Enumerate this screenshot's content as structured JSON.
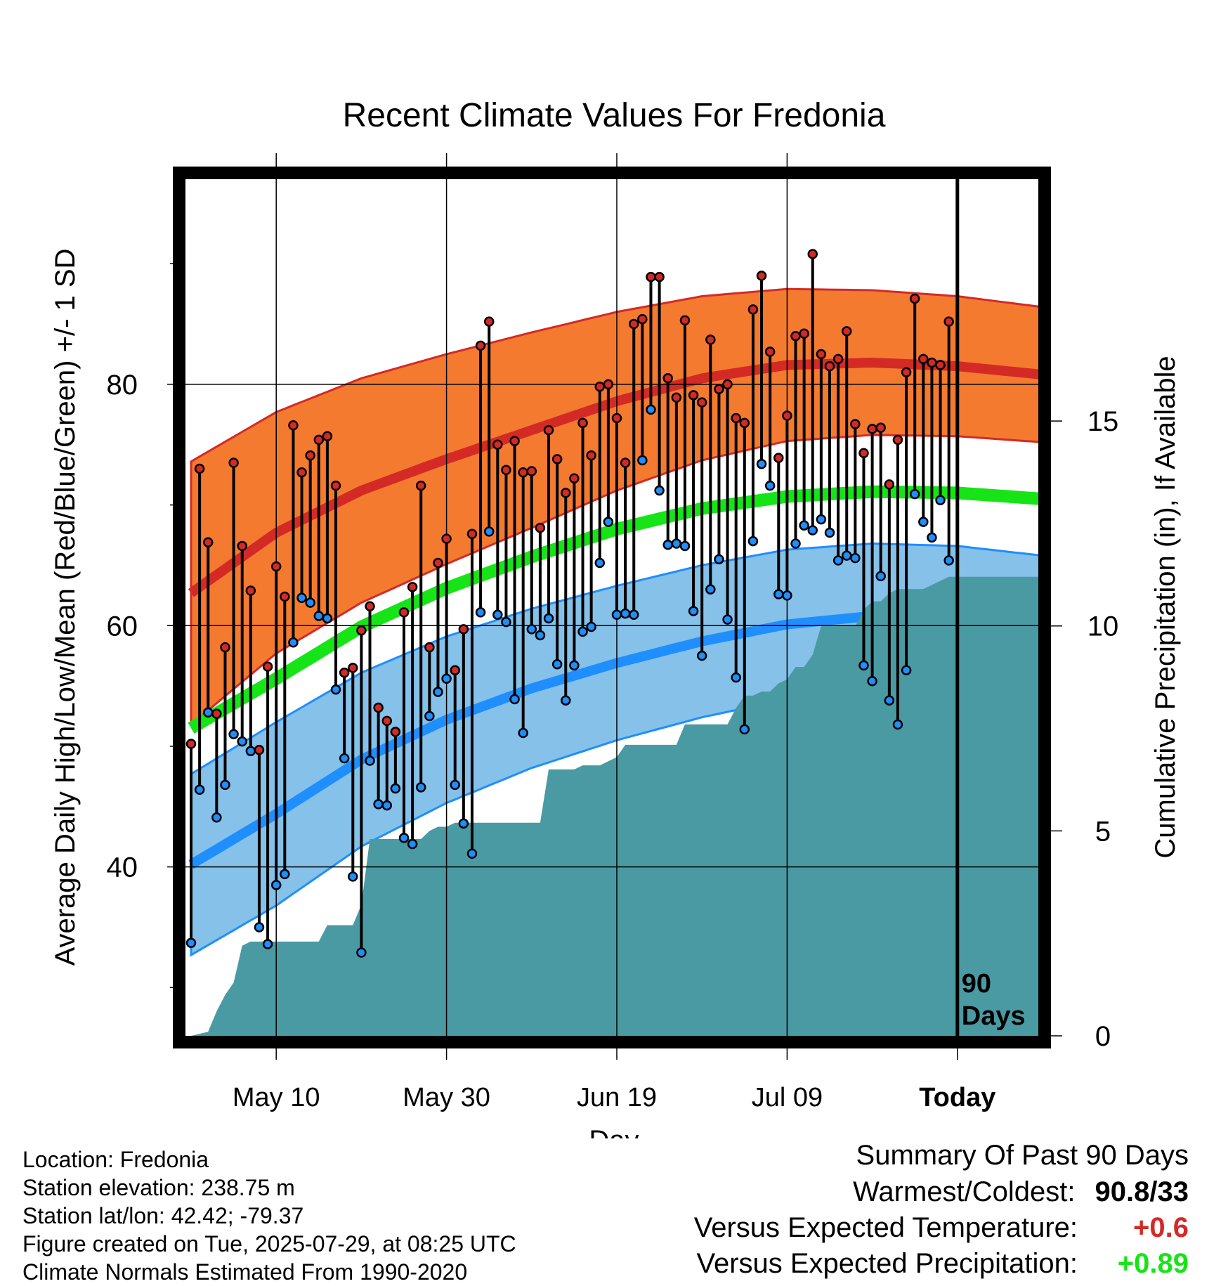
{
  "title": "Recent Climate Values For Fredonia",
  "ylabel_left": "Average Daily High/Low/Mean (Red/Blue/Green) +/- 1 SD",
  "ylabel_right": "Cumulative Precipitation (in), If Available",
  "xlabel": "Day",
  "today_marker": {
    "label_line1": "90",
    "label_line2": "Days"
  },
  "colors": {
    "high_band": "#f47a30",
    "high_line": "#d42a26",
    "low_band": "#85c1e8",
    "low_line": "#1f8eff",
    "mean_line": "#16e416",
    "precip_fill": "#4a9aa3",
    "high_dot": "#d42a26",
    "low_dot": "#1f8eff"
  },
  "chart_data": {
    "type": "line",
    "title": "Recent Climate Values For Fredonia",
    "xlabel": "Day",
    "ylabel": "Average Daily High/Low/Mean (Red/Blue/Green) +/- 1 SD",
    "y2label": "Cumulative Precipitation (in), If Available",
    "x_ticks": [
      {
        "label": "May 10",
        "day": 10
      },
      {
        "label": "May 30",
        "day": 30
      },
      {
        "label": "Jun 19",
        "day": 50
      },
      {
        "label": "Jul 09",
        "day": 70
      },
      {
        "label": "Today",
        "day": 90
      }
    ],
    "x_range": [
      0,
      100
    ],
    "ylim": [
      26,
      97
    ],
    "y_ticks": [
      40,
      60,
      80
    ],
    "y_minor_ticks": [
      30,
      50,
      70,
      90
    ],
    "y2lim": [
      0,
      20.9
    ],
    "y2_ticks": [
      0,
      5,
      10,
      15
    ],
    "grid": true,
    "normals": {
      "day": [
        0,
        10,
        20,
        30,
        40,
        50,
        60,
        70,
        80,
        90,
        100
      ],
      "high_mean": [
        62.7,
        67.7,
        71.2,
        73.8,
        76.2,
        78.6,
        80.5,
        81.6,
        81.8,
        81.5,
        80.8
      ],
      "high_sd": [
        10.9,
        10.0,
        9.3,
        8.7,
        8.1,
        7.4,
        6.8,
        6.3,
        6.0,
        5.8,
        5.6
      ],
      "low_mean": [
        40.2,
        44.4,
        48.9,
        52.2,
        54.8,
        56.9,
        58.7,
        60.1,
        60.8,
        60.7,
        60.1
      ],
      "low_sd": [
        7.5,
        7.6,
        7.2,
        6.9,
        6.6,
        6.4,
        6.3,
        6.2,
        6.0,
        5.9,
        5.7
      ],
      "mean": [
        51.5,
        55.6,
        59.9,
        63.1,
        65.7,
        68.0,
        69.7,
        70.7,
        71.1,
        71.0,
        70.5
      ]
    },
    "series": [
      {
        "name": "High",
        "values": [
          50.2,
          73.0,
          66.9,
          52.7,
          58.2,
          73.5,
          66.6,
          62.9,
          49.7,
          56.6,
          64.9,
          62.4,
          76.6,
          72.7,
          74.1,
          75.4,
          75.7,
          71.6,
          56.1,
          56.5,
          59.6,
          61.6,
          53.2,
          52.1,
          51.2,
          61.1,
          63.2,
          71.6,
          58.2,
          65.2,
          67.2,
          56.3,
          59.7,
          67.6,
          83.2,
          85.2,
          75.0,
          72.9,
          75.3,
          72.7,
          72.8,
          68.1,
          76.2,
          73.8,
          71.0,
          72.2,
          76.8,
          74.1,
          79.8,
          80.0,
          77.2,
          73.5,
          85.0,
          85.4,
          88.9,
          88.9,
          80.5,
          78.9,
          85.3,
          79.1,
          78.5,
          83.7,
          79.6,
          80.0,
          77.2,
          76.8,
          86.2,
          89.0,
          82.7,
          73.9,
          77.4,
          84.0,
          84.2,
          90.8,
          82.5,
          81.5,
          82.1,
          84.4,
          76.7,
          74.3,
          76.3,
          76.4,
          71.7,
          75.4,
          81.0,
          87.1,
          82.1,
          81.8,
          81.6,
          85.2
        ]
      },
      {
        "name": "Low",
        "values": [
          33.7,
          46.4,
          52.8,
          44.1,
          46.8,
          51.0,
          50.4,
          49.6,
          35.0,
          33.6,
          38.5,
          39.4,
          58.6,
          62.3,
          61.9,
          60.8,
          60.6,
          54.7,
          49.0,
          39.2,
          32.9,
          48.8,
          45.2,
          45.1,
          46.5,
          42.4,
          41.9,
          46.6,
          52.5,
          54.5,
          55.6,
          46.8,
          43.6,
          41.1,
          61.1,
          67.8,
          60.9,
          60.3,
          53.9,
          51.1,
          59.7,
          59.2,
          60.6,
          56.8,
          53.8,
          56.7,
          59.5,
          59.9,
          65.2,
          68.6,
          60.9,
          61.0,
          60.9,
          73.7,
          77.9,
          71.2,
          66.7,
          66.8,
          66.6,
          61.2,
          57.5,
          63.0,
          65.5,
          60.5,
          55.7,
          51.4,
          67.0,
          73.4,
          71.6,
          62.6,
          62.5,
          66.8,
          68.3,
          67.9,
          68.8,
          67.7,
          65.4,
          65.8,
          65.6,
          56.7,
          55.4,
          64.1,
          53.8,
          51.8,
          56.3,
          70.9,
          68.6,
          67.3,
          70.4,
          65.4
        ]
      },
      {
        "name": "Cumulative Precipitation",
        "days": [
          0,
          2,
          3,
          4,
          5,
          6,
          7,
          8,
          9,
          10,
          11,
          12,
          15,
          16,
          17,
          18,
          19,
          20,
          21,
          22,
          23,
          24,
          25,
          26,
          27,
          28,
          29,
          30,
          31,
          32,
          33,
          34,
          35,
          36,
          37,
          38,
          39,
          40,
          41,
          42,
          43,
          44,
          45,
          46,
          47,
          48,
          49,
          50,
          51,
          52,
          53,
          54,
          55,
          56,
          57,
          58,
          59,
          60,
          61,
          62,
          63,
          64,
          65,
          66,
          67,
          68,
          69,
          70,
          71,
          72,
          73,
          74,
          75,
          76,
          77,
          78,
          79,
          80,
          81,
          82,
          83,
          84,
          85,
          86,
          87,
          88,
          89,
          90,
          100
        ],
        "values": [
          0.0,
          0.1,
          0.6,
          1.0,
          1.3,
          2.2,
          2.3,
          2.3,
          2.3,
          2.3,
          2.3,
          2.3,
          2.3,
          2.7,
          2.7,
          2.7,
          2.7,
          3.2,
          4.8,
          4.8,
          4.8,
          4.8,
          4.8,
          4.8,
          4.8,
          5.0,
          5.1,
          5.1,
          5.2,
          5.2,
          5.2,
          5.2,
          5.2,
          5.2,
          5.2,
          5.2,
          5.2,
          5.2,
          5.2,
          6.5,
          6.5,
          6.5,
          6.5,
          6.6,
          6.6,
          6.6,
          6.7,
          6.8,
          7.1,
          7.1,
          7.1,
          7.1,
          7.1,
          7.1,
          7.1,
          7.6,
          7.6,
          7.6,
          7.6,
          7.6,
          7.6,
          8.0,
          8.3,
          8.3,
          8.4,
          8.4,
          8.6,
          8.7,
          9.0,
          9.0,
          9.3,
          10.0,
          10.0,
          10.0,
          10.0,
          10.0,
          10.4,
          10.6,
          10.6,
          10.8,
          10.9,
          10.9,
          10.9,
          10.9,
          11.0,
          11.1,
          11.2,
          11.2,
          11.2
        ]
      }
    ]
  },
  "info": {
    "location": "Location: Fredonia",
    "elevation": "Station elevation: 238.75 m",
    "latlon": "Station lat/lon: 42.42; -79.37",
    "created": "Figure created on Tue, 2025-07-29, at 08:25 UTC",
    "normals": "Climate Normals Estimated From 1990-2020"
  },
  "summary": {
    "title": "Summary Of Past 90 Days",
    "warmest_label": "Warmest/Coldest:",
    "warmest_value": "90.8/33",
    "temp_label": "Versus Expected Temperature:",
    "temp_value": "+0.6",
    "temp_color": "#d42a26",
    "precip_label": "Versus Expected Precipitation:",
    "precip_value": "+0.89",
    "precip_color": "#16e416"
  }
}
